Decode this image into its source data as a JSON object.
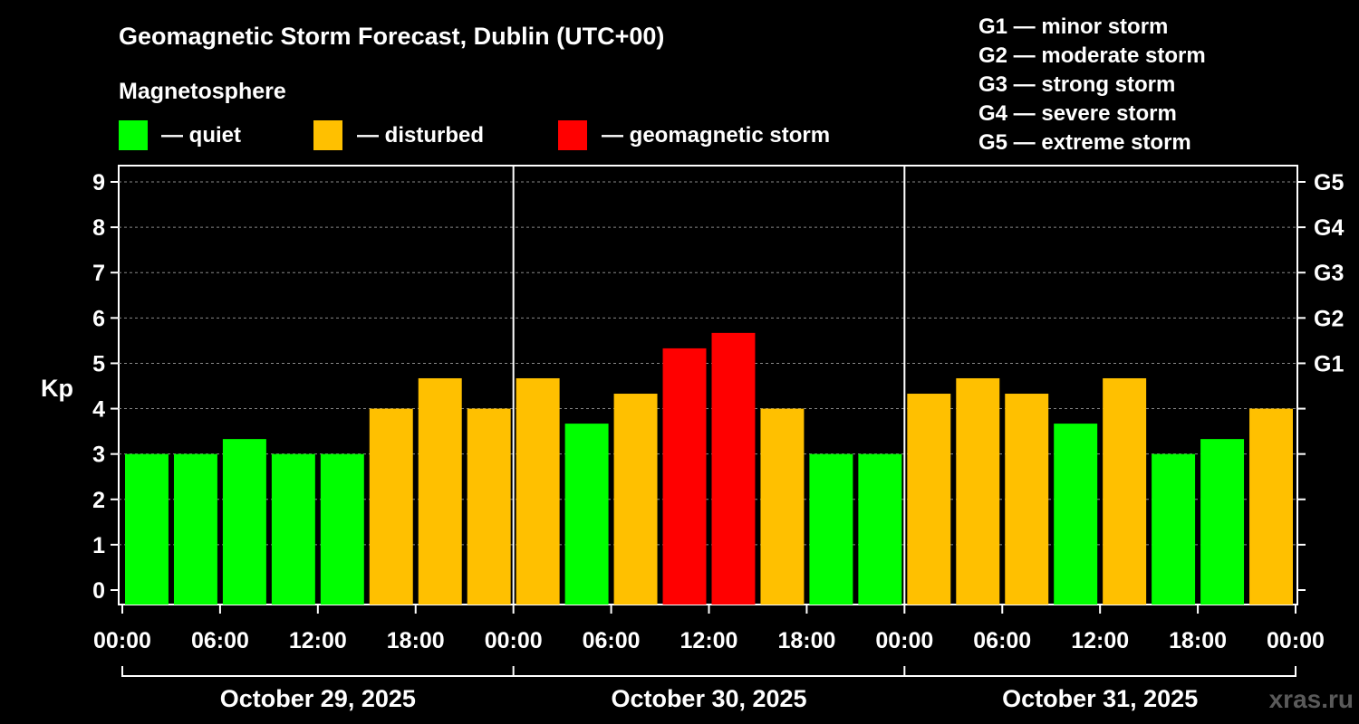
{
  "chart_data": {
    "type": "bar",
    "title": "Geomagnetic Storm Forecast, Dublin (UTC+00)",
    "ylabel": "Kp",
    "ylim": [
      0,
      9
    ],
    "yticks": [
      "0",
      "1",
      "2",
      "3",
      "4",
      "5",
      "6",
      "7",
      "8",
      "9"
    ],
    "gticks": [
      {
        "label": "G1",
        "kp": 5
      },
      {
        "label": "G2",
        "kp": 6
      },
      {
        "label": "G3",
        "kp": 7
      },
      {
        "label": "G4",
        "kp": 8
      },
      {
        "label": "G5",
        "kp": 9
      }
    ],
    "gscale": [
      "G1 — minor storm",
      "G2 — moderate storm",
      "G3 — strong storm",
      "G4 — severe storm",
      "G5 — extreme storm"
    ],
    "legend_title": "Magnetosphere",
    "legend": [
      {
        "label": "— quiet",
        "color": "#00ff00"
      },
      {
        "label": "— disturbed",
        "color": "#ffc000"
      },
      {
        "label": "— geomagnetic storm",
        "color": "#ff0000"
      }
    ],
    "xticks": [
      "00:00",
      "06:00",
      "12:00",
      "18:00",
      "00:00",
      "06:00",
      "12:00",
      "18:00",
      "00:00",
      "06:00",
      "12:00",
      "18:00",
      "00:00"
    ],
    "days": [
      "October 29, 2025",
      "October 30, 2025",
      "October 31, 2025"
    ],
    "values": [
      3,
      3,
      3.33,
      3,
      3,
      4,
      4.67,
      4,
      4.67,
      3.67,
      4.33,
      5.33,
      5.67,
      4,
      3,
      3,
      4.33,
      4.67,
      4.33,
      3.67,
      4.67,
      3,
      3.33,
      4
    ],
    "levels": [
      "quiet",
      "quiet",
      "quiet",
      "quiet",
      "quiet",
      "disturbed",
      "disturbed",
      "disturbed",
      "disturbed",
      "quiet",
      "disturbed",
      "storm",
      "storm",
      "disturbed",
      "quiet",
      "quiet",
      "disturbed",
      "disturbed",
      "disturbed",
      "quiet",
      "disturbed",
      "quiet",
      "quiet",
      "disturbed"
    ],
    "level_colors": {
      "quiet": "#00ff00",
      "disturbed": "#ffc000",
      "storm": "#ff0000"
    },
    "grid": true
  },
  "watermark": "xras.ru"
}
